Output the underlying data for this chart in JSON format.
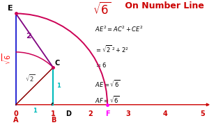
{
  "bg_color": "#ffffff",
  "title_sqrt6": "$\\sqrt{6}$",
  "title_rest": " On Number Line",
  "title_color": "#cc0000",
  "title_fontsize": 10,
  "sqrt6": 2.449489742783178,
  "sqrt2": 1.4142135623730951,
  "point_A": [
    0,
    0
  ],
  "point_B": [
    1,
    0
  ],
  "point_C": [
    1,
    1
  ],
  "point_E_y": 2.449489742783178,
  "point_D_x": 1.4142135623730951,
  "label_fontsize": 7,
  "small_fontsize": 6,
  "number_color": "#cc0000",
  "blue_color": "#0000cc",
  "purple_color": "#800080",
  "cyan_color": "#00bbbb",
  "pink_color": "#cc0055",
  "maroon_color": "#8B0000",
  "xlim": [
    -0.3,
    5.3
  ],
  "ylim": [
    -0.45,
    2.8
  ],
  "eq_lines": [
    "AE$^2$ = AC$^2$ + CE$^2$",
    "= $\\sqrt{2}$$^2$ + 2$^2$",
    "= 6",
    "AE = $\\sqrt{6}$",
    "AF = $\\sqrt{6}$"
  ]
}
